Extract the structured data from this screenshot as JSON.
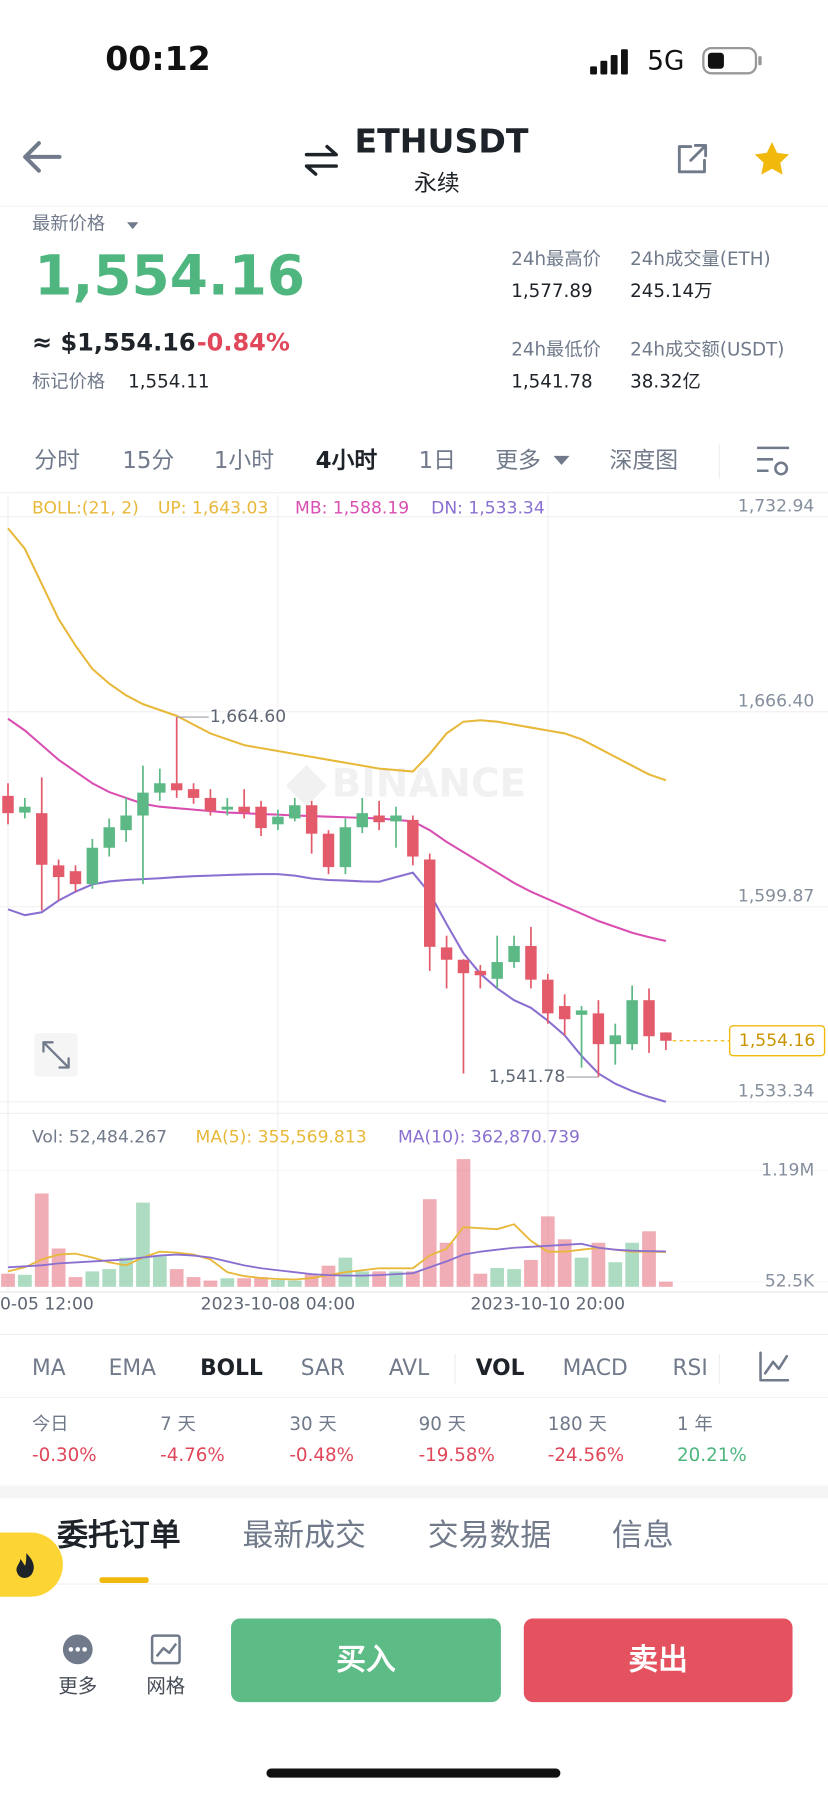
{
  "status_bar": {
    "time": "00:12",
    "network": "5G"
  },
  "header": {
    "symbol": "ETHUSDT",
    "contract": "永续"
  },
  "price": {
    "label": "最新价格",
    "last": "1,554.16",
    "usd": "≈ $1,554.16",
    "change": "-0.84%",
    "mark_label": "标记价格",
    "mark": "1,554.11"
  },
  "stats": [
    {
      "label": "24h最高价",
      "value": "1,577.89"
    },
    {
      "label": "24h成交量(ETH)",
      "value": "245.14万"
    },
    {
      "label": "24h最低价",
      "value": "1,541.78"
    },
    {
      "label": "24h成交额(USDT)",
      "value": "38.32亿"
    }
  ],
  "intervals": {
    "items": [
      "分时",
      "15分",
      "1小时",
      "4小时",
      "1日",
      "更多",
      "深度图"
    ],
    "active": 3
  },
  "chart_data": {
    "type": "candlestick",
    "watermark": "BINANCE",
    "categories": [
      "0-05 12:00",
      null,
      null,
      null,
      null,
      null,
      null,
      null,
      null,
      null,
      null,
      null,
      null,
      null,
      null,
      null,
      "2023-10-08 04:00",
      null,
      null,
      null,
      null,
      null,
      null,
      null,
      null,
      null,
      null,
      null,
      null,
      null,
      null,
      null,
      "2023-10-10 20:00",
      null,
      null,
      null,
      null,
      null,
      null,
      null
    ],
    "open": [
      1637.7,
      1632,
      1631.8,
      1614,
      1612,
      1607.6,
      1620,
      1626,
      1631,
      1638.8,
      1642,
      1640,
      1637,
      1633,
      1634,
      1634,
      1628,
      1630,
      1634.5,
      1624.8,
      1613.4,
      1627,
      1631,
      1629,
      1629.5,
      1616,
      1586,
      1581.8,
      1578,
      1575.3,
      1581,
      1586.5,
      1575,
      1566,
      1563,
      1563.5,
      1553,
      1553,
      1568,
      1557
    ],
    "high": [
      1642,
      1637,
      1644,
      1616,
      1614,
      1623,
      1630,
      1637,
      1648,
      1647,
      1664.6,
      1642,
      1640,
      1637,
      1640,
      1636,
      1633,
      1637,
      1636,
      1626,
      1630,
      1637,
      1636,
      1634,
      1631,
      1618,
      1590,
      1582,
      1580,
      1590,
      1590,
      1593,
      1577,
      1570,
      1566,
      1568,
      1560,
      1573,
      1572,
      1557
    ],
    "low": [
      1628,
      1630,
      1598.6,
      1602,
      1605,
      1606,
      1617,
      1622,
      1607.6,
      1636,
      1637,
      1635,
      1631,
      1631,
      1630,
      1624,
      1626,
      1629,
      1618,
      1611,
      1611,
      1625,
      1626,
      1620,
      1614,
      1578,
      1572,
      1543,
      1572,
      1572,
      1579,
      1572,
      1560,
      1556,
      1545,
      1541.78,
      1546,
      1551,
      1550,
      1551
    ],
    "close": [
      1631.8,
      1634,
      1614.2,
      1610,
      1607.6,
      1620,
      1627,
      1631,
      1638.8,
      1642,
      1639.6,
      1637,
      1632.6,
      1634,
      1632,
      1626.7,
      1630.6,
      1634.5,
      1624.8,
      1613.4,
      1627,
      1631.8,
      1628.7,
      1631,
      1617,
      1586.2,
      1581.8,
      1577.2,
      1576.5,
      1581,
      1586.5,
      1575,
      1563.5,
      1561.5,
      1564.5,
      1553,
      1556,
      1568,
      1555.7,
      1554.16
    ],
    "colors": {
      "up": "#5cb985",
      "down": "#e35b6b"
    },
    "ylim": [
      1529.4,
      1740.4
    ],
    "yticks": [
      {
        "value": 1732.94,
        "label": "1,732.94"
      },
      {
        "value": 1666.4,
        "label": "1,666.40"
      },
      {
        "value": 1599.87,
        "label": "1,599.87"
      },
      {
        "value": 1533.34,
        "label": "1,533.34"
      }
    ],
    "boll": {
      "params": "BOLL:(21, 2)",
      "params_color": "#e8b83a",
      "series": [
        {
          "name": "UP: 1,643.03",
          "color": "#e8b83a",
          "values": [
            1729,
            1722,
            1710,
            1698,
            1689,
            1681,
            1676,
            1672,
            1669,
            1667,
            1665,
            1662,
            1659,
            1657,
            1655,
            1654,
            1653,
            1652,
            1651,
            1650,
            1649,
            1648,
            1647,
            1646.5,
            1646,
            1652,
            1659,
            1663,
            1663.5,
            1663,
            1662,
            1661,
            1660,
            1659,
            1657,
            1654,
            1651,
            1648,
            1645,
            1643.03
          ]
        },
        {
          "name": "MB: 1,588.19",
          "color": "#d94fb1",
          "values": [
            1664,
            1660,
            1655,
            1650,
            1646,
            1642,
            1639,
            1637,
            1635,
            1634,
            1633.5,
            1633,
            1632.5,
            1632,
            1631.8,
            1631.5,
            1631.3,
            1631,
            1630.8,
            1630.6,
            1630.4,
            1630.2,
            1630,
            1629.5,
            1629,
            1626,
            1622,
            1618.5,
            1615,
            1611.5,
            1608,
            1605,
            1602.5,
            1600,
            1597.5,
            1595,
            1593,
            1591,
            1589.5,
            1588.19
          ]
        },
        {
          "name": "DN: 1,533.34",
          "color": "#8a6fd1",
          "values": [
            1599,
            1597,
            1598,
            1602,
            1605,
            1607.5,
            1608.5,
            1609,
            1609.3,
            1609.6,
            1610,
            1610.3,
            1610.5,
            1610.7,
            1610.9,
            1611,
            1611,
            1610.5,
            1609.5,
            1609,
            1608.8,
            1608.5,
            1608.4,
            1610,
            1611.5,
            1604.5,
            1594,
            1584,
            1577,
            1572,
            1568,
            1565.4,
            1561,
            1556,
            1549,
            1543,
            1539.5,
            1537,
            1535,
            1533.34
          ]
        }
      ]
    },
    "max_label": {
      "value": 1664.6,
      "label": "1,664.60"
    },
    "min_label": {
      "value": 1541.78,
      "label": "1,541.78"
    },
    "last_label": {
      "value": 1554.16,
      "label": "1,554.16"
    },
    "volume": {
      "name": "Vol: 52,484.267",
      "values": [
        134600,
        122900,
        955500,
        392600,
        99400,
        158000,
        181500,
        298800,
        861700,
        310500,
        181500,
        99400,
        64200,
        87700,
        87700,
        99400,
        70000,
        64200,
        134600,
        216700,
        298800,
        158000,
        158000,
        158000,
        158000,
        896800,
        451200,
        1307300,
        134600,
        193200,
        181500,
        275300,
        720900,
        486400,
        298800,
        451200,
        251900,
        451200,
        568500,
        52484.267
      ],
      "ylim": [
        -53000,
        1330000
      ],
      "yticks": [
        {
          "value": 1190000,
          "label": "1.19M"
        },
        {
          "value": 52500,
          "label": "52.5K"
        }
      ],
      "ma": [
        {
          "name": "MA(5): 355,569.813",
          "color": "#e8b83a",
          "values": [
            158000,
            200000,
            280000,
            330000,
            340000,
            300000,
            250000,
            220000,
            300000,
            360000,
            350000,
            330000,
            280000,
            150000,
            110000,
            90000,
            80000,
            75000,
            90000,
            120000,
            150000,
            170000,
            190000,
            190000,
            190000,
            320000,
            390000,
            610000,
            600000,
            590000,
            640000,
            470000,
            360000,
            360000,
            380000,
            400000,
            380000,
            360000,
            360000,
            355569.813
          ]
        },
        {
          "name": "MA(10): 362,870.739",
          "color": "#8a6fd1",
          "values": [
            200000,
            210000,
            220000,
            240000,
            250000,
            260000,
            270000,
            280000,
            300000,
            320000,
            330000,
            320000,
            300000,
            260000,
            220000,
            190000,
            170000,
            150000,
            130000,
            120000,
            115000,
            115000,
            120000,
            130000,
            140000,
            200000,
            260000,
            330000,
            360000,
            380000,
            400000,
            410000,
            420000,
            430000,
            440000,
            400000,
            380000,
            370000,
            365000,
            362870.739
          ]
        }
      ]
    }
  },
  "indicators": {
    "items": [
      "MA",
      "EMA",
      "BOLL",
      "SAR",
      "AVL",
      "VOL",
      "MACD",
      "RSI"
    ],
    "active": [
      2,
      5
    ]
  },
  "performance": [
    {
      "label": "今日",
      "value": "-0.30%"
    },
    {
      "label": "7 天",
      "value": "-4.76%"
    },
    {
      "label": "30 天",
      "value": "-0.48%"
    },
    {
      "label": "90 天",
      "value": "-19.58%"
    },
    {
      "label": "180 天",
      "value": "-24.56%"
    },
    {
      "label": "1 年",
      "value": "20.21%"
    }
  ],
  "tabs": {
    "items": [
      "委托订单",
      "最新成交",
      "交易数据",
      "信息"
    ],
    "active": 0
  },
  "actions": {
    "more": "更多",
    "grid": "网格",
    "buy": "买入",
    "sell": "卖出"
  }
}
